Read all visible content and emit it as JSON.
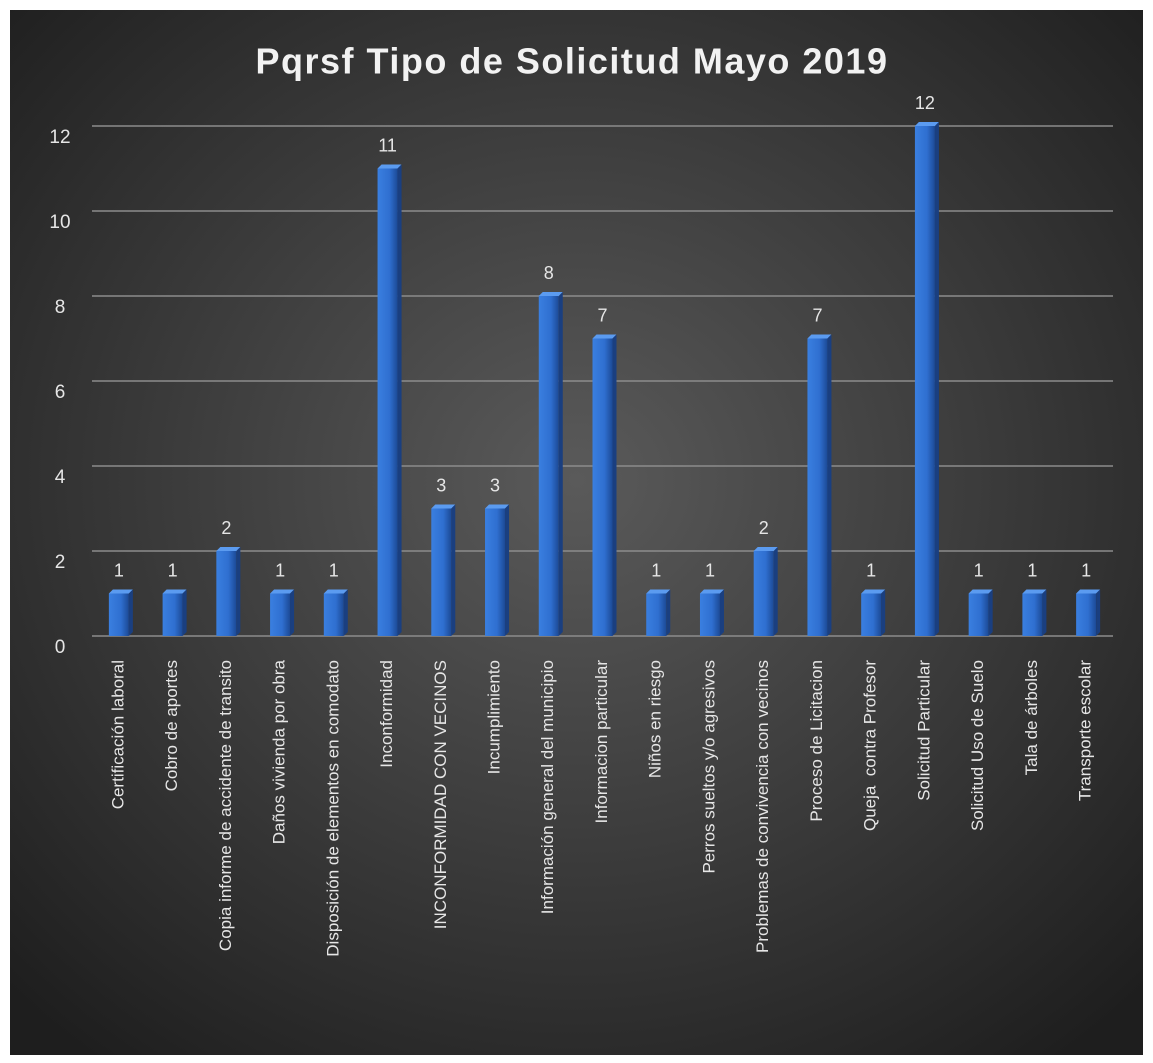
{
  "chart_data": {
    "type": "bar",
    "title": "Pqrsf Tipo de Solicitud Mayo 2019",
    "categories": [
      "Certificación laboral",
      "Cobro de aportes",
      "Copia informe de accidente de transito",
      "Daños vivienda por obra",
      "Disposición de elementos en comodato",
      "Inconformidad",
      "INCONFORMIDAD CON VECINOS",
      "Incumplimiento",
      "Información general del municipio",
      "Informacion particular",
      "Niños en riesgo",
      "Perros sueltos y/o agresivos",
      "Problemas de convivencia con vecinos",
      "Proceso de Licitacion",
      "Queja  contra Profesor",
      "Solicitud Particular",
      "Solicitud Uso de Suelo",
      "Tala de árboles",
      "Transporte escolar"
    ],
    "values": [
      1,
      1,
      2,
      1,
      1,
      11,
      3,
      3,
      8,
      7,
      1,
      1,
      2,
      7,
      1,
      12,
      1,
      1,
      1
    ],
    "color": "#2f6fd0",
    "ylim": [
      0,
      12
    ],
    "yticks": [
      0,
      2,
      4,
      6,
      8,
      10,
      12
    ],
    "grid": true
  }
}
